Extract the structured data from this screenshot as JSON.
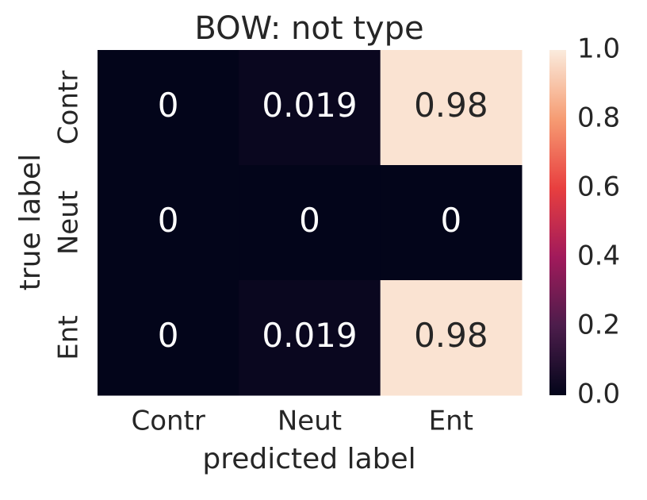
{
  "chart_data": {
    "type": "heatmap",
    "title": "BOW: not type",
    "x_label": "predicted label",
    "y_label": "true label",
    "x_categories": [
      "Contr",
      "Neut",
      "Ent"
    ],
    "y_categories": [
      "Contr",
      "Neut",
      "Ent"
    ],
    "values": [
      [
        0,
        0.019,
        0.98
      ],
      [
        0,
        0,
        0
      ],
      [
        0,
        0.019,
        0.98
      ]
    ],
    "colormap": "rocket",
    "clim": [
      0,
      1
    ],
    "cticks": [
      {
        "value": 0,
        "label": "0.0"
      },
      0.2,
      0.4,
      0.6,
      0.8,
      {
        "value": 1,
        "label": "1.0"
      }
    ]
  }
}
